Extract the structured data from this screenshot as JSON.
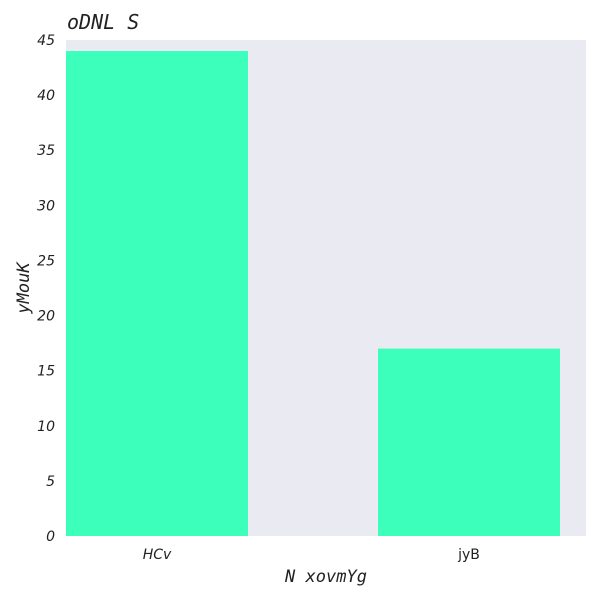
{
  "colors": {
    "plot_bg": "#eaeaf2",
    "bar": "#3cffbb"
  },
  "chart_data": {
    "type": "bar",
    "title": "oDNL S",
    "xlabel": "N xovmYg",
    "ylabel": "yMouK",
    "categories": [
      "HCv",
      "jyB"
    ],
    "category_styles": [
      "italic",
      "normal"
    ],
    "values": [
      44,
      17
    ],
    "ylim": [
      0,
      45
    ],
    "yticks": [
      "0",
      "5",
      "10",
      "15",
      "20",
      "25",
      "30",
      "35",
      "40",
      "45"
    ],
    "grid": false
  }
}
